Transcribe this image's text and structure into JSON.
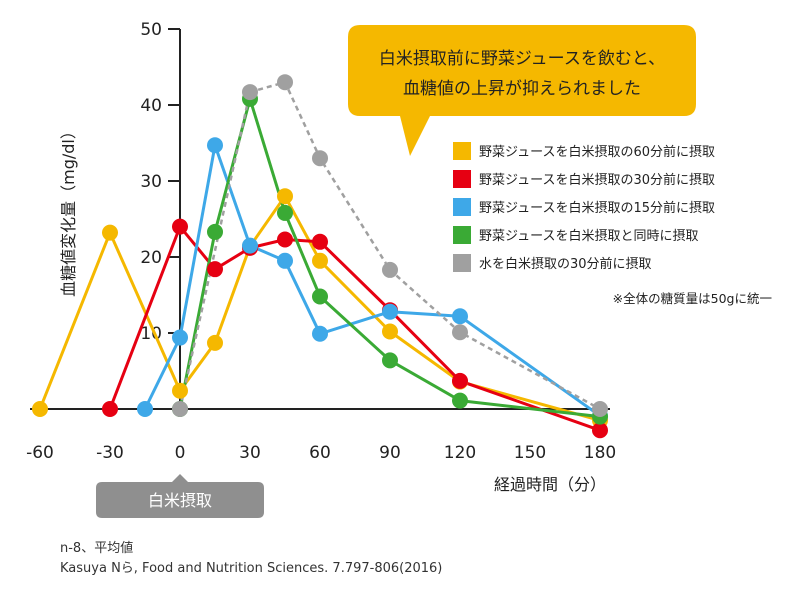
{
  "chart_data": {
    "type": "line",
    "ylabel": "血糖値変化量（mg/dl）",
    "xlabel": "経過時間（分）",
    "xlim": [
      -60,
      180
    ],
    "ylim": [
      0,
      50
    ],
    "xticks": [
      "-60",
      "-30",
      "0",
      "30",
      "60",
      "90",
      "120",
      "150",
      "180"
    ],
    "yticks": [
      "10",
      "20",
      "30",
      "40",
      "50"
    ],
    "grid": false,
    "legend_position": "right",
    "series": [
      {
        "name": "野菜ジュースを白米摂取の60分前に摂取",
        "color": "#f5b800",
        "dashed": false,
        "x": [
          -60,
          -30,
          0,
          15,
          30,
          45,
          60,
          90,
          120,
          180
        ],
        "y": [
          0,
          23.2,
          2.4,
          8.7,
          21.4,
          28.0,
          19.5,
          10.2,
          3.6,
          -1.5
        ]
      },
      {
        "name": "野菜ジュースを白米摂取の30分前に摂取",
        "color": "#e60012",
        "dashed": false,
        "x": [
          -30,
          0,
          15,
          30,
          45,
          60,
          90,
          120,
          180
        ],
        "y": [
          0,
          24.0,
          18.4,
          21.2,
          22.3,
          22.0,
          13.0,
          3.7,
          -2.8
        ]
      },
      {
        "name": "野菜ジュースを白米摂取の15分前に摂取",
        "color": "#3ea8e8",
        "dashed": false,
        "x": [
          -15,
          0,
          15,
          30,
          45,
          60,
          90,
          120,
          180
        ],
        "y": [
          0,
          9.4,
          34.7,
          21.5,
          19.5,
          9.9,
          12.8,
          12.2,
          -0.9
        ]
      },
      {
        "name": "野菜ジュースを白米摂取と同時に摂取",
        "color": "#3aaa35",
        "dashed": false,
        "x": [
          0,
          15,
          30,
          45,
          60,
          90,
          120,
          180
        ],
        "y": [
          0,
          23.3,
          40.8,
          25.8,
          14.8,
          6.4,
          1.1,
          -1.0
        ]
      },
      {
        "name": "水を白米摂取の30分前に摂取",
        "color": "#a0a0a0",
        "dashed": true,
        "x": [
          0,
          30,
          45,
          60,
          90,
          120,
          180
        ],
        "y": [
          0,
          41.7,
          43.0,
          33.0,
          18.3,
          10.1,
          0
        ]
      }
    ]
  },
  "callout": {
    "line1": "白米摂取前に野菜ジュースを飲むと、",
    "line2": "血糖値の上昇が抑えられました"
  },
  "note": "※全体の糖質量は50gに統一",
  "rice_tag": "白米摂取",
  "footer": {
    "line1": "n-8、平均値",
    "line2": "Kasuya Nら, Food and Nutrition Sciences. 7.797-806(2016)"
  }
}
